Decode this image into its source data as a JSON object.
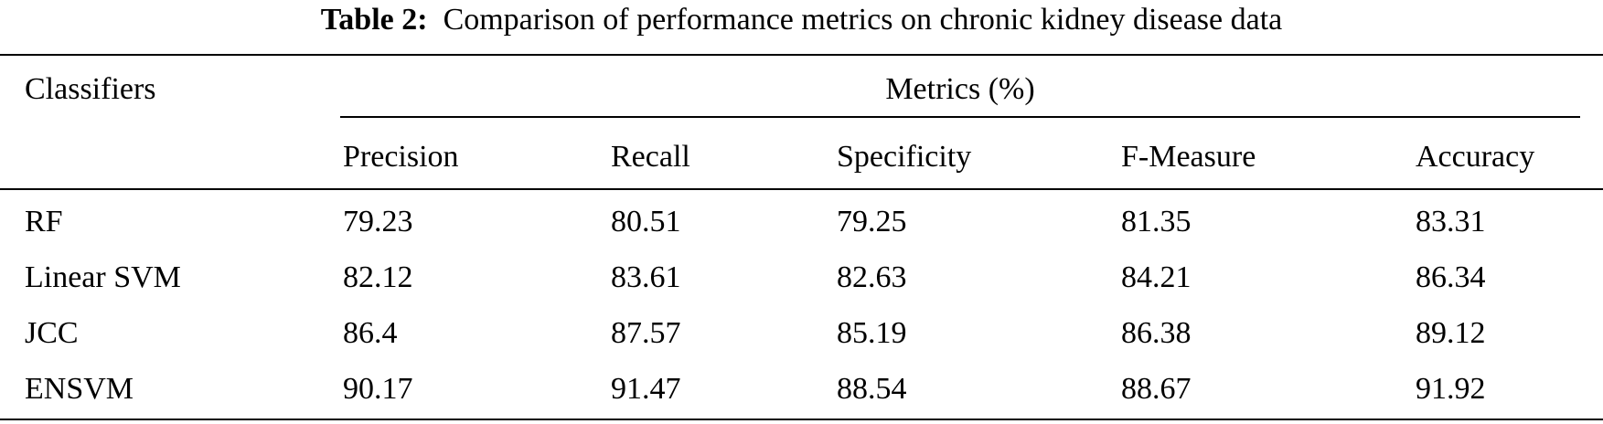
{
  "caption": {
    "label": "Table 2:",
    "text": "Comparison of performance metrics on chronic kidney disease data"
  },
  "header": {
    "row_label": "Classifiers",
    "group_label": "Metrics (%)",
    "columns": [
      "Precision",
      "Recall",
      "Specificity",
      "F-Measure",
      "Accuracy"
    ]
  },
  "rows": [
    {
      "name": "RF",
      "values": [
        "79.23",
        "80.51",
        "79.25",
        "81.35",
        "83.31"
      ]
    },
    {
      "name": "Linear SVM",
      "values": [
        "82.12",
        "83.61",
        "82.63",
        "84.21",
        "86.34"
      ]
    },
    {
      "name": "JCC",
      "values": [
        "86.4",
        "87.57",
        "85.19",
        "86.38",
        "89.12"
      ]
    },
    {
      "name": "ENSVM",
      "values": [
        "90.17",
        "91.47",
        "88.54",
        "88.67",
        "91.92"
      ]
    }
  ]
}
